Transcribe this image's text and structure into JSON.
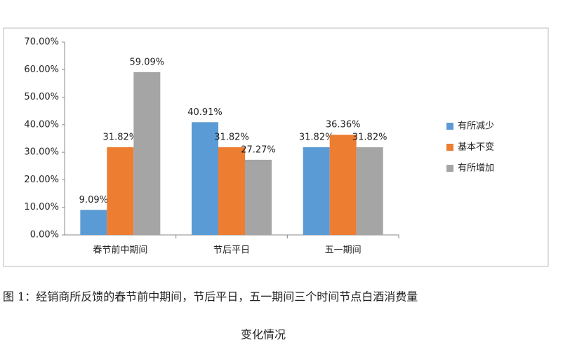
{
  "chart_data": {
    "type": "bar",
    "categories": [
      "春节前中期间",
      "节后平日",
      "五一期间"
    ],
    "series": [
      {
        "name": "有所减少",
        "color": "#5b9bd5",
        "values": [
          9.09,
          40.91,
          31.82
        ],
        "value_labels": [
          "9.09%",
          "40.91%",
          "31.82%"
        ]
      },
      {
        "name": "基本不变",
        "color": "#ed7d31",
        "values": [
          31.82,
          31.82,
          36.36
        ],
        "value_labels": [
          "31.82%",
          "31.82%",
          "36.36%"
        ]
      },
      {
        "name": "有所增加",
        "color": "#a5a5a5",
        "values": [
          59.09,
          27.27,
          31.82
        ],
        "value_labels": [
          "59.09%",
          "27.27%",
          "31.82%"
        ]
      }
    ],
    "ylim": [
      0,
      70
    ],
    "yticks": [
      {
        "value": 0,
        "label": "0.00%"
      },
      {
        "value": 10,
        "label": "10.00%"
      },
      {
        "value": 20,
        "label": "20.00%"
      },
      {
        "value": 30,
        "label": "30.00%"
      },
      {
        "value": 40,
        "label": "40.00%"
      },
      {
        "value": 50,
        "label": "50.00%"
      },
      {
        "value": 60,
        "label": "60.00%"
      },
      {
        "value": 70,
        "label": "70.00%"
      }
    ],
    "grid": false,
    "legend_position": "right",
    "caption": [
      "图 1：经销商所反馈的春节前中期间，节后平日，五一期间三个时间节点白酒消费量",
      "变化情况"
    ]
  }
}
